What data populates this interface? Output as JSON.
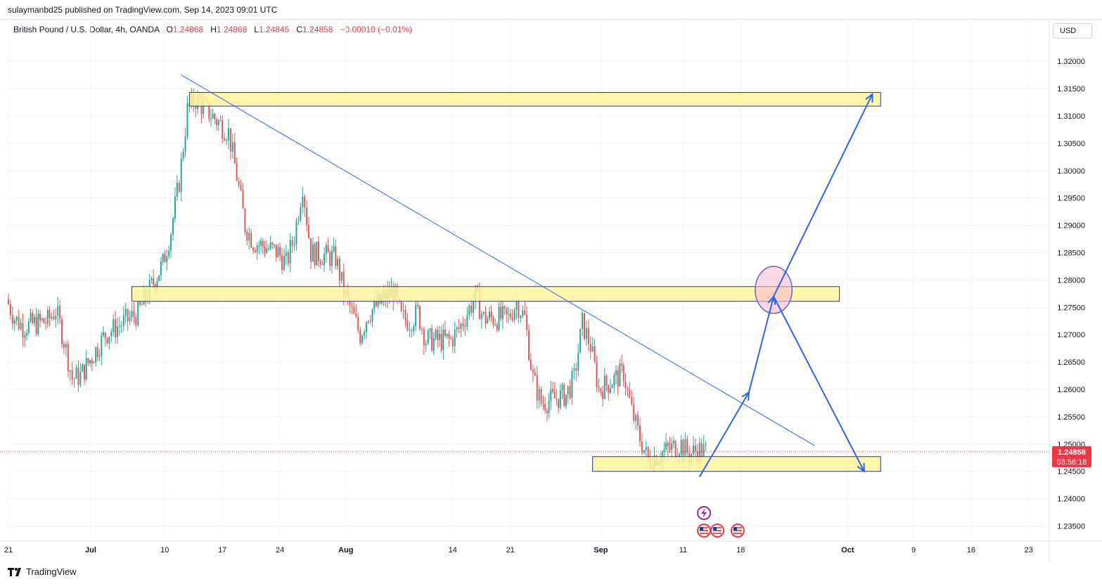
{
  "header": {
    "published": "sulaymanbd25 published on TradingView.com, Sep 14, 2023 09:01 UTC"
  },
  "legend": {
    "symbol": "British Pound / U.S. Dollar, 4h, OANDA",
    "open_label": "O",
    "open": "1.24868",
    "high_label": "H",
    "high": "1.24868",
    "low_label": "L",
    "low": "1.24845",
    "close_label": "C",
    "close": "1.24858",
    "change": "−0.00010 (−0.01%)"
  },
  "currency_button": "USD",
  "footer": {
    "brand": "TradingView"
  },
  "colors": {
    "up": "#26a69a",
    "down": "#ef5350",
    "zone_fill": "#fff59d",
    "zone_border": "#1e3a8a",
    "drawing": "#2962ff",
    "price_label_bg": "#f23645"
  },
  "chart_data": {
    "type": "candlestick",
    "timeframe": "4h",
    "y_axis": {
      "min": 1.2325,
      "max": 1.3235,
      "ticks": [
        "1.32000",
        "1.31500",
        "1.31000",
        "1.30500",
        "1.30000",
        "1.29500",
        "1.29000",
        "1.28500",
        "1.28000",
        "1.27500",
        "1.27000",
        "1.26500",
        "1.26000",
        "1.25500",
        "1.25000",
        "1.24500",
        "1.24000",
        "1.23500"
      ]
    },
    "x_axis": {
      "ticks": [
        "21",
        "Jul",
        "10",
        "17",
        "24",
        "Aug",
        "14",
        "21",
        "Sep",
        "11",
        "18",
        "Oct",
        "9",
        "16",
        "23"
      ]
    },
    "current_price": {
      "value": 1.24858,
      "label": "1.24858",
      "countdown": "03:58:18"
    },
    "close_path": [
      [
        "Jun 21",
        1.2765
      ],
      [
        "Jun 22",
        1.273
      ],
      [
        "Jun 23",
        1.2715
      ],
      [
        "Jun 26",
        1.2725
      ],
      [
        "Jun 27",
        1.2745
      ],
      [
        "Jun 28",
        1.269
      ],
      [
        "Jun 29",
        1.262
      ],
      [
        "Jun 30",
        1.2625
      ],
      [
        "Jul 3",
        1.27
      ],
      [
        "Jul 4",
        1.271
      ],
      [
        "Jul 5",
        1.272
      ],
      [
        "Jul 6",
        1.273
      ],
      [
        "Jul 7",
        1.274
      ],
      [
        "Jul 10",
        1.283
      ],
      [
        "Jul 11",
        1.289
      ],
      [
        "Jul 12",
        1.298
      ],
      [
        "Jul 13",
        1.311
      ],
      [
        "Jul 14",
        1.313
      ],
      [
        "Jul 17",
        1.3085
      ],
      [
        "Jul 18",
        1.307
      ],
      [
        "Jul 19",
        1.299
      ],
      [
        "Jul 20",
        1.29
      ],
      [
        "Jul 21",
        1.287
      ],
      [
        "Jul 24",
        1.285
      ],
      [
        "Jul 25",
        1.283
      ],
      [
        "Jul 26",
        1.288
      ],
      [
        "Jul 27",
        1.2975
      ],
      [
        "Jul 28",
        1.285
      ],
      [
        "Jul 31",
        1.284
      ],
      [
        "Aug 1",
        1.278
      ],
      [
        "Aug 2",
        1.274
      ],
      [
        "Aug 3",
        1.27
      ],
      [
        "Aug 4",
        1.274
      ],
      [
        "Aug 7",
        1.278
      ],
      [
        "Aug 8",
        1.273
      ],
      [
        "Aug 9",
        1.2725
      ],
      [
        "Aug 10",
        1.274
      ],
      [
        "Aug 11",
        1.269
      ],
      [
        "Aug 14",
        1.269
      ],
      [
        "Aug 15",
        1.271
      ],
      [
        "Aug 16",
        1.274
      ],
      [
        "Aug 17",
        1.277
      ],
      [
        "Aug 18",
        1.273
      ],
      [
        "Aug 21",
        1.273
      ],
      [
        "Aug 22",
        1.276
      ],
      [
        "Aug 23",
        1.273
      ],
      [
        "Aug 24",
        1.262
      ],
      [
        "Aug 25",
        1.2575
      ],
      [
        "Aug 28",
        1.259
      ],
      [
        "Aug 29",
        1.262
      ],
      [
        "Aug 30",
        1.272
      ],
      [
        "Aug 31",
        1.268
      ],
      [
        "Sep 1",
        1.26
      ],
      [
        "Sep 4",
        1.263
      ],
      [
        "Sep 5",
        1.256
      ],
      [
        "Sep 6",
        1.251
      ],
      [
        "Sep 7",
        1.247
      ],
      [
        "Sep 8",
        1.248
      ],
      [
        "Sep 11",
        1.25
      ],
      [
        "Sep 12",
        1.248
      ],
      [
        "Sep 13",
        1.249
      ],
      [
        "Sep 14",
        1.24858
      ]
    ],
    "drawings": {
      "trendline": {
        "from": [
          "Jul 12",
          1.3175
        ],
        "to": [
          "Sep 27",
          1.2497
        ]
      },
      "zones": [
        {
          "from": "Jul 13",
          "to": "Oct 5",
          "low": 1.3118,
          "high": 1.3143
        },
        {
          "from": "Jul 6",
          "to": "Sep 30",
          "low": 1.2761,
          "high": 1.2788
        },
        {
          "from": "Aug 31",
          "to": "Oct 5",
          "low": 1.245,
          "high": 1.2477
        }
      ],
      "projection_path": [
        [
          "Sep 13",
          1.244
        ],
        [
          "Sep 19",
          1.2595
        ],
        [
          "Sep 22",
          1.277
        ],
        [
          "Oct 3",
          1.245
        ]
      ],
      "projection_path_upper": [
        [
          "Sep 22",
          1.277
        ],
        [
          "Oct 4",
          1.314
        ]
      ],
      "highlight_ellipse": {
        "center": [
          "Sep 22",
          1.2782
        ],
        "date_radius_days": 1.4,
        "price_radius": 0.0043
      }
    }
  }
}
